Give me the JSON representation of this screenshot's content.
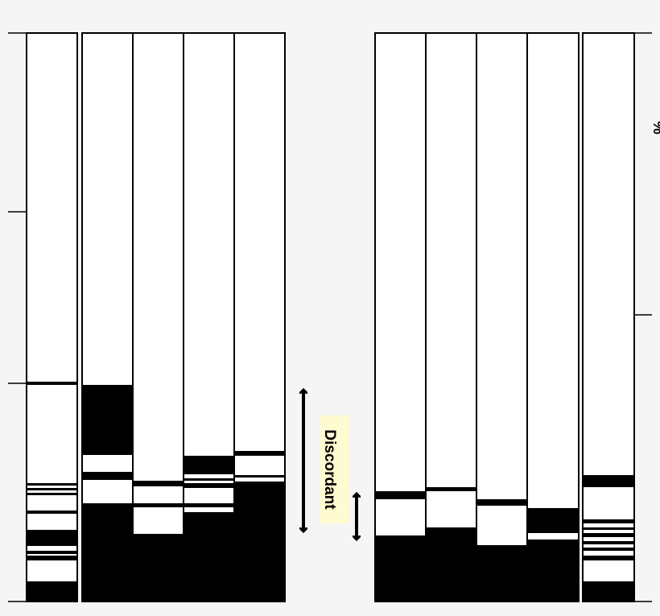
{
  "label": "Discordant",
  "axis_symbol": "%"
}
